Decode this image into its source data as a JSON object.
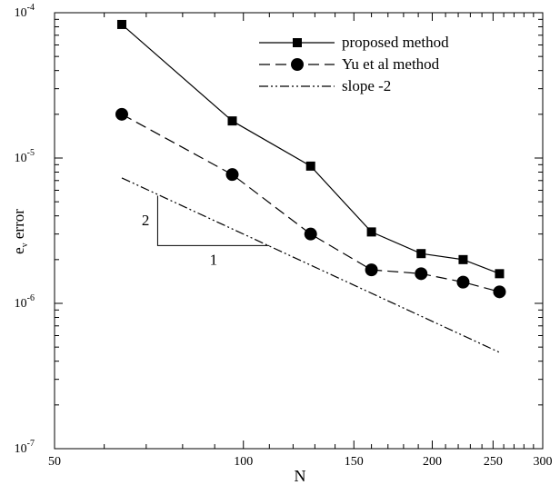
{
  "chart_data": {
    "type": "line",
    "title": "",
    "xlabel": "N",
    "ylabel": {
      "main": "e",
      "subscript": "v",
      "rest": " error"
    },
    "x_scale": "log",
    "y_scale": "log",
    "xlim": [
      50,
      300
    ],
    "ylim": [
      1e-07,
      0.0001
    ],
    "x_ticks": [
      {
        "value": 50,
        "label": "50"
      },
      {
        "value": 100,
        "label": "100"
      },
      {
        "value": 150,
        "label": "150"
      },
      {
        "value": 200,
        "label": "200"
      },
      {
        "value": 250,
        "label": "250"
      },
      {
        "value": 300,
        "label": "300"
      }
    ],
    "y_ticks": [
      {
        "value": 1e-07,
        "base": "10",
        "exp": "-7"
      },
      {
        "value": 1e-06,
        "base": "10",
        "exp": "-6"
      },
      {
        "value": 1e-05,
        "base": "10",
        "exp": "-5"
      },
      {
        "value": 0.0001,
        "base": "10",
        "exp": "-4"
      }
    ],
    "legend_position": "top-right",
    "grid": false,
    "series": [
      {
        "name": "proposed method",
        "line_style": "solid",
        "marker": "square",
        "x": [
          64,
          96,
          128,
          160,
          192,
          224,
          256
        ],
        "y": [
          8.3e-05,
          1.8e-05,
          8.8e-06,
          3.1e-06,
          2.2e-06,
          2e-06,
          1.6e-06
        ]
      },
      {
        "name": "Yu et al method",
        "line_style": "dashed",
        "marker": "circle",
        "x": [
          64,
          96,
          128,
          160,
          192,
          224,
          256
        ],
        "y": [
          2e-05,
          7.7e-06,
          3e-06,
          1.7e-06,
          1.6e-06,
          1.4e-06,
          1.2e-06
        ]
      },
      {
        "name": "slope -2",
        "line_style": "dash-dot-dot",
        "marker": "none",
        "x": [
          64,
          256
        ],
        "y": [
          7.3e-06,
          4.6e-07
        ]
      }
    ],
    "annotations": {
      "rise_label": "2",
      "run_label": "1",
      "triangle": {
        "x_left": 73,
        "x_right": 110,
        "y_top": 5.5e-06,
        "y_bottom": 2.5e-06
      }
    }
  }
}
